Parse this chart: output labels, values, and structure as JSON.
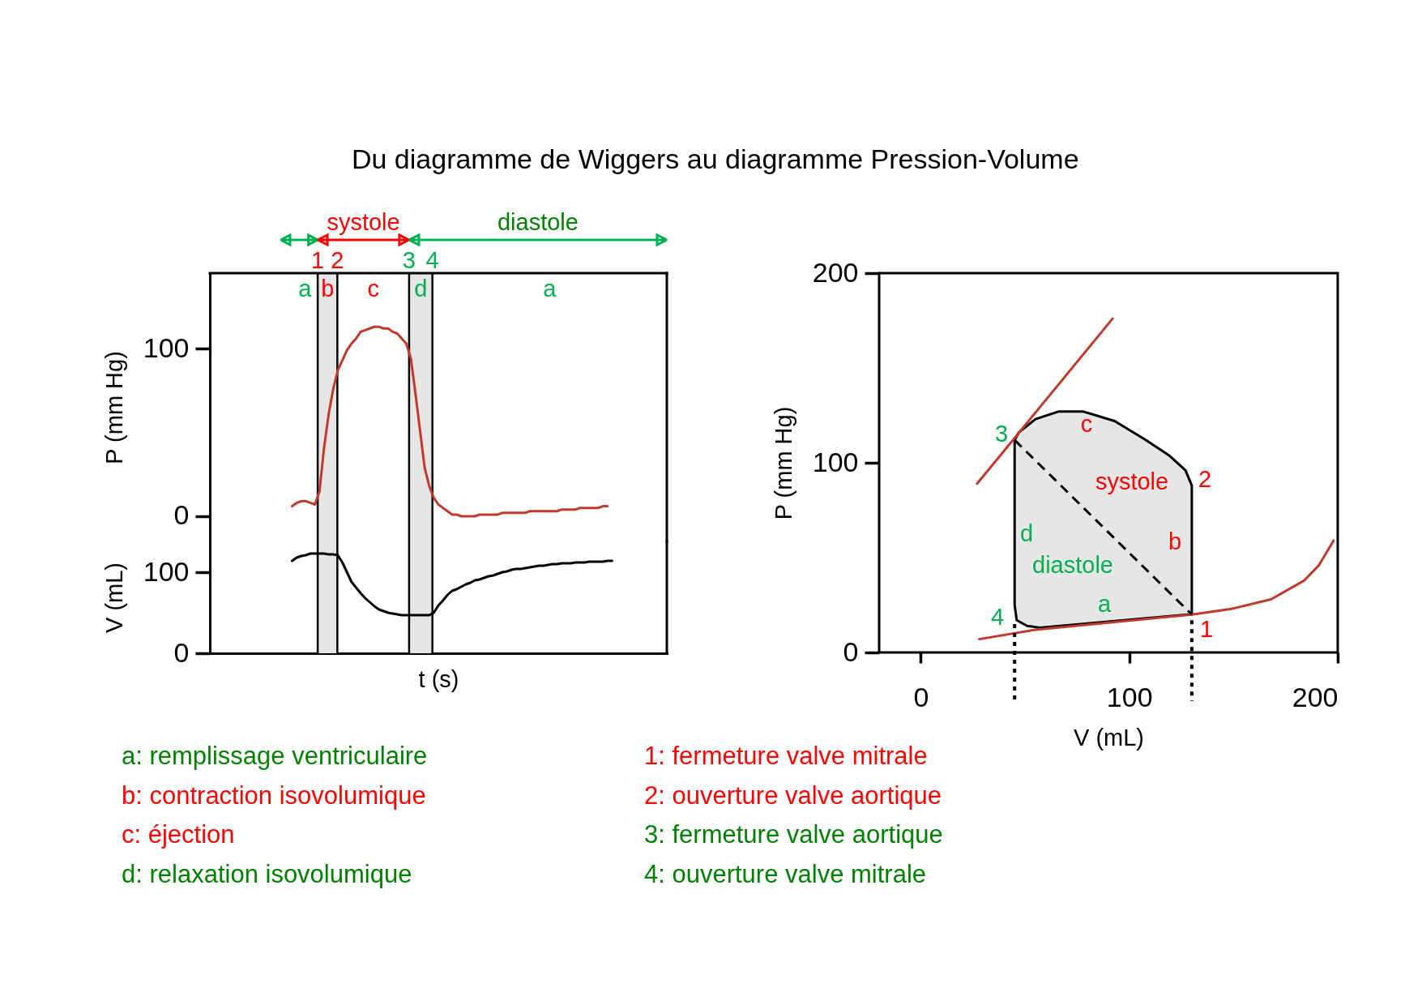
{
  "chart_data": [
    {
      "type": "line",
      "title": "Du diagramme de Wiggers au diagramme Pression-Volume",
      "ylabel": "P (mm Hg)",
      "ylim": [
        -15,
        145
      ],
      "yticks": [
        0,
        100
      ],
      "tick_labels": "y",
      "grid": false,
      "categories": [
        null,
        null,
        null,
        null,
        null,
        null,
        null,
        null,
        null,
        null,
        null,
        null,
        null,
        null,
        null,
        null,
        null,
        null,
        null,
        null,
        null,
        null,
        null,
        null,
        null,
        null,
        null,
        null,
        null,
        null,
        null,
        null,
        null,
        null,
        null,
        null,
        null,
        null,
        null,
        null,
        null,
        null,
        null,
        null,
        null,
        null,
        null,
        null,
        null,
        null,
        null,
        null,
        null,
        null,
        null,
        null,
        null,
        null,
        null,
        null,
        null,
        null,
        null,
        null,
        null,
        null,
        null,
        null,
        null,
        null,
        null,
        null,
        null,
        null,
        null,
        null,
        null,
        null,
        null,
        null,
        null,
        null,
        null,
        null,
        null,
        null,
        null,
        null,
        null,
        null,
        null,
        null,
        null,
        null,
        null,
        null,
        null,
        null,
        null,
        null,
        null
      ],
      "series": [
        {
          "color": "#c0392b",
          "values": [
            null,
            null,
            null,
            null,
            null,
            null,
            null,
            null,
            null,
            null,
            null,
            null,
            null,
            null,
            null,
            null,
            null,
            null,
            6,
            8,
            9,
            9,
            8,
            7,
            15,
            41,
            61,
            76,
            87,
            93,
            99,
            103,
            106,
            110,
            111,
            112,
            113,
            113,
            112,
            112,
            110,
            109,
            106,
            103,
            94,
            73,
            51,
            29,
            18,
            11,
            7,
            5,
            3,
            1,
            1,
            0,
            0,
            0,
            0,
            1,
            1,
            1,
            1,
            1,
            2,
            2,
            2,
            2,
            2,
            2,
            3,
            3,
            3,
            3,
            3,
            3,
            3,
            4,
            4,
            4,
            4,
            5,
            5,
            5,
            5,
            5,
            6,
            6,
            null,
            null,
            null,
            null,
            null,
            null,
            null,
            null,
            null,
            null,
            null,
            null,
            null
          ]
        }
      ],
      "annotations": [
        "systole",
        "diastole",
        "1",
        "2",
        "3",
        "4",
        "a",
        "b",
        "c",
        "d",
        "a"
      ]
    },
    {
      "type": "line",
      "xlabel": "t (s)",
      "ylabel": "V (mL)",
      "ylim": [
        0,
        138
      ],
      "yticks": [
        0,
        100
      ],
      "tick_labels": "y",
      "grid": false,
      "categories": [
        null,
        null,
        null,
        null,
        null,
        null,
        null,
        null,
        null,
        null,
        null,
        null,
        null,
        null,
        null,
        null,
        null,
        null,
        null,
        null,
        null,
        null,
        null,
        null,
        null,
        null,
        null,
        null,
        null,
        null,
        null,
        null,
        null,
        null,
        null,
        null,
        null,
        null,
        null,
        null,
        null,
        null,
        null,
        null,
        null,
        null,
        null,
        null,
        null,
        null,
        null,
        null,
        null,
        null,
        null,
        null,
        null,
        null,
        null,
        null,
        null,
        null,
        null,
        null,
        null,
        null,
        null,
        null,
        null,
        null,
        null,
        null,
        null,
        null,
        null,
        null,
        null,
        null,
        null,
        null,
        null,
        null,
        null,
        null,
        null,
        null,
        null,
        null,
        null,
        null,
        null,
        null,
        null,
        null,
        null,
        null,
        null,
        null,
        null,
        null,
        null
      ],
      "series": [
        {
          "color": "#000000",
          "values": [
            null,
            null,
            null,
            null,
            null,
            null,
            null,
            null,
            null,
            null,
            null,
            null,
            null,
            null,
            null,
            null,
            null,
            null,
            114,
            118,
            120,
            121,
            123,
            123,
            123,
            123,
            122,
            122,
            121,
            112,
            100,
            88,
            81,
            74,
            68,
            63,
            58,
            54,
            52,
            50,
            49,
            48,
            47,
            47,
            47,
            47,
            47,
            47,
            47,
            50,
            59,
            65,
            72,
            77,
            79,
            82,
            85,
            87,
            90,
            91,
            93,
            95,
            96,
            98,
            100,
            101,
            103,
            104,
            104,
            105,
            106,
            107,
            108,
            108,
            109,
            110,
            110,
            111,
            111,
            111,
            112,
            112,
            112,
            113,
            113,
            113,
            113,
            114,
            114,
            null,
            null,
            null,
            null,
            null,
            null,
            null,
            null,
            null,
            null,
            null,
            null
          ]
        }
      ]
    },
    {
      "type": "line",
      "xlabel": "V (mL)",
      "ylabel": "P (mm Hg)",
      "xlim": [
        -20,
        200
      ],
      "xticks": [
        0,
        100,
        200
      ],
      "ylim": [
        0,
        200
      ],
      "yticks": [
        0,
        100,
        200
      ],
      "grid": false,
      "series": [
        {
          "color": "#000000",
          "x": [
            130,
            130,
            127,
            119,
            108,
            93,
            78,
            66,
            55,
            47,
            45,
            45,
            46,
            51,
            57,
            128
          ],
          "values": [
            20,
            88,
            96,
            104,
            112,
            122,
            127,
            127,
            123,
            116,
            112,
            25,
            17,
            14,
            13,
            20
          ]
        },
        {
          "color": "#c0392b",
          "x": [
            27,
            92
          ],
          "values": [
            89,
            176
          ]
        },
        {
          "color": "#c0392b",
          "x": [
            28,
            55,
            93,
            130,
            149,
            168,
            184,
            191,
            198
          ],
          "values": [
            7,
            12,
            16,
            20,
            23,
            28,
            38,
            46,
            59
          ]
        },
        {
          "color": "#000000",
          "line_style": "dashed",
          "x": [
            45,
            130
          ],
          "values": [
            112,
            20
          ]
        },
        {
          "color": "#000000",
          "line_style": "dotted",
          "x": [
            45,
            45
          ],
          "values": [
            15,
            0
          ]
        },
        {
          "color": "#000000",
          "line_style": "dotted",
          "x": [
            130,
            130
          ],
          "values": [
            17,
            0
          ]
        }
      ],
      "annotations": [
        "3",
        "c",
        "2",
        "systole",
        "b",
        "d",
        "diastole",
        "a",
        "4",
        "1"
      ]
    },
    {
      "type": "other",
      "annotations": [
        "a: remplissage ventriculaire",
        "b: contraction isovolumique",
        "c: éjection",
        "d: relaxation isovolumique",
        "1: fermeture valve mitrale",
        "2: ouverture valve aortique",
        "3: fermeture valve aortique",
        "4: ouverture valve mitrale"
      ]
    }
  ]
}
